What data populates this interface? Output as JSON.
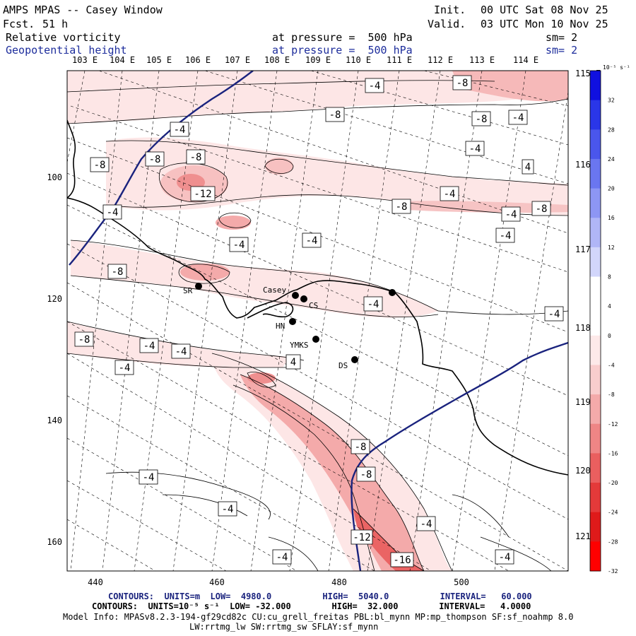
{
  "header": {
    "title": "AMPS MPAS -- Casey Window",
    "forecast_label": "Fcst.",
    "forecast_hours": "51 h",
    "init_label": "Init.",
    "init_time": "00 UTC Sat 08 Nov 25",
    "valid_label": "Valid.",
    "valid_time": "03 UTC Mon 10 Nov 25",
    "field1": "Relative vorticity",
    "field1_level": "at pressure =  500 hPa",
    "field1_sm": "sm= 2",
    "field2": "Geopotential height",
    "field2_level": "at pressure =  500 hPa",
    "field2_sm": "sm= 2"
  },
  "lon_labels_top": [
    "103 E",
    "104 E",
    "105 E",
    "106 E",
    "107 E",
    "108 E",
    "109 E",
    "110 E",
    "111 E",
    "112 E",
    "113 E",
    "114 E"
  ],
  "lon_labels_right": [
    "115 E",
    "116 E",
    "117 E",
    "118 E",
    "119 E",
    "120 E",
    "121 E"
  ],
  "x_ticks": [
    "440",
    "460",
    "480",
    "500"
  ],
  "y_ticks": [
    "100",
    "120",
    "140",
    "160"
  ],
  "stations": [
    "SR",
    "Casey",
    "CS",
    "HN",
    "YMKS",
    "DS"
  ],
  "contour_labels": {
    "neg4": "-4",
    "neg8": "-8",
    "neg12": "-12",
    "neg16": "-16"
  },
  "colorbar": {
    "units": "10⁻⁵ s⁻¹",
    "ticks": [
      "32",
      "28",
      "24",
      "20",
      "16",
      "12",
      "8",
      "4",
      "0",
      "-4",
      "-8",
      "-12",
      "-16",
      "-20",
      "-24",
      "-28",
      "-32"
    ],
    "colors": [
      "#1010e0",
      "#2a36e8",
      "#4a56ec",
      "#6a76f0",
      "#8d96f4",
      "#b0b6f7",
      "#d2d6fb",
      "#ffffff",
      "#ffffff",
      "#fde9e9",
      "#f9cdcd",
      "#f4aaaa",
      "#ef8585",
      "#ea5f5f",
      "#e43a3a",
      "#df1a1a",
      "#ff0000"
    ]
  },
  "footer": {
    "line1_contours": "CONTOURS:  UNITS=m  LOW=  4980.0          HIGH=  5040.0          INTERVAL=   60.000",
    "line2_contours": "CONTOURS:  UNITS=10⁻⁵ s⁻¹  LOW= -32.000        HIGH=  32.000        INTERVAL=   4.0000",
    "model_info": "Model Info: MPASv8.2.3-194-gf29cd82c CU:cu_grell_freitas PBL:bl_mynn MP:mp_thompson SF:sf_noahmp 8.0",
    "model_info2": "LW:rrtmg_lw SW:rrtmg_sw SFLAY:sf_mynn"
  }
}
